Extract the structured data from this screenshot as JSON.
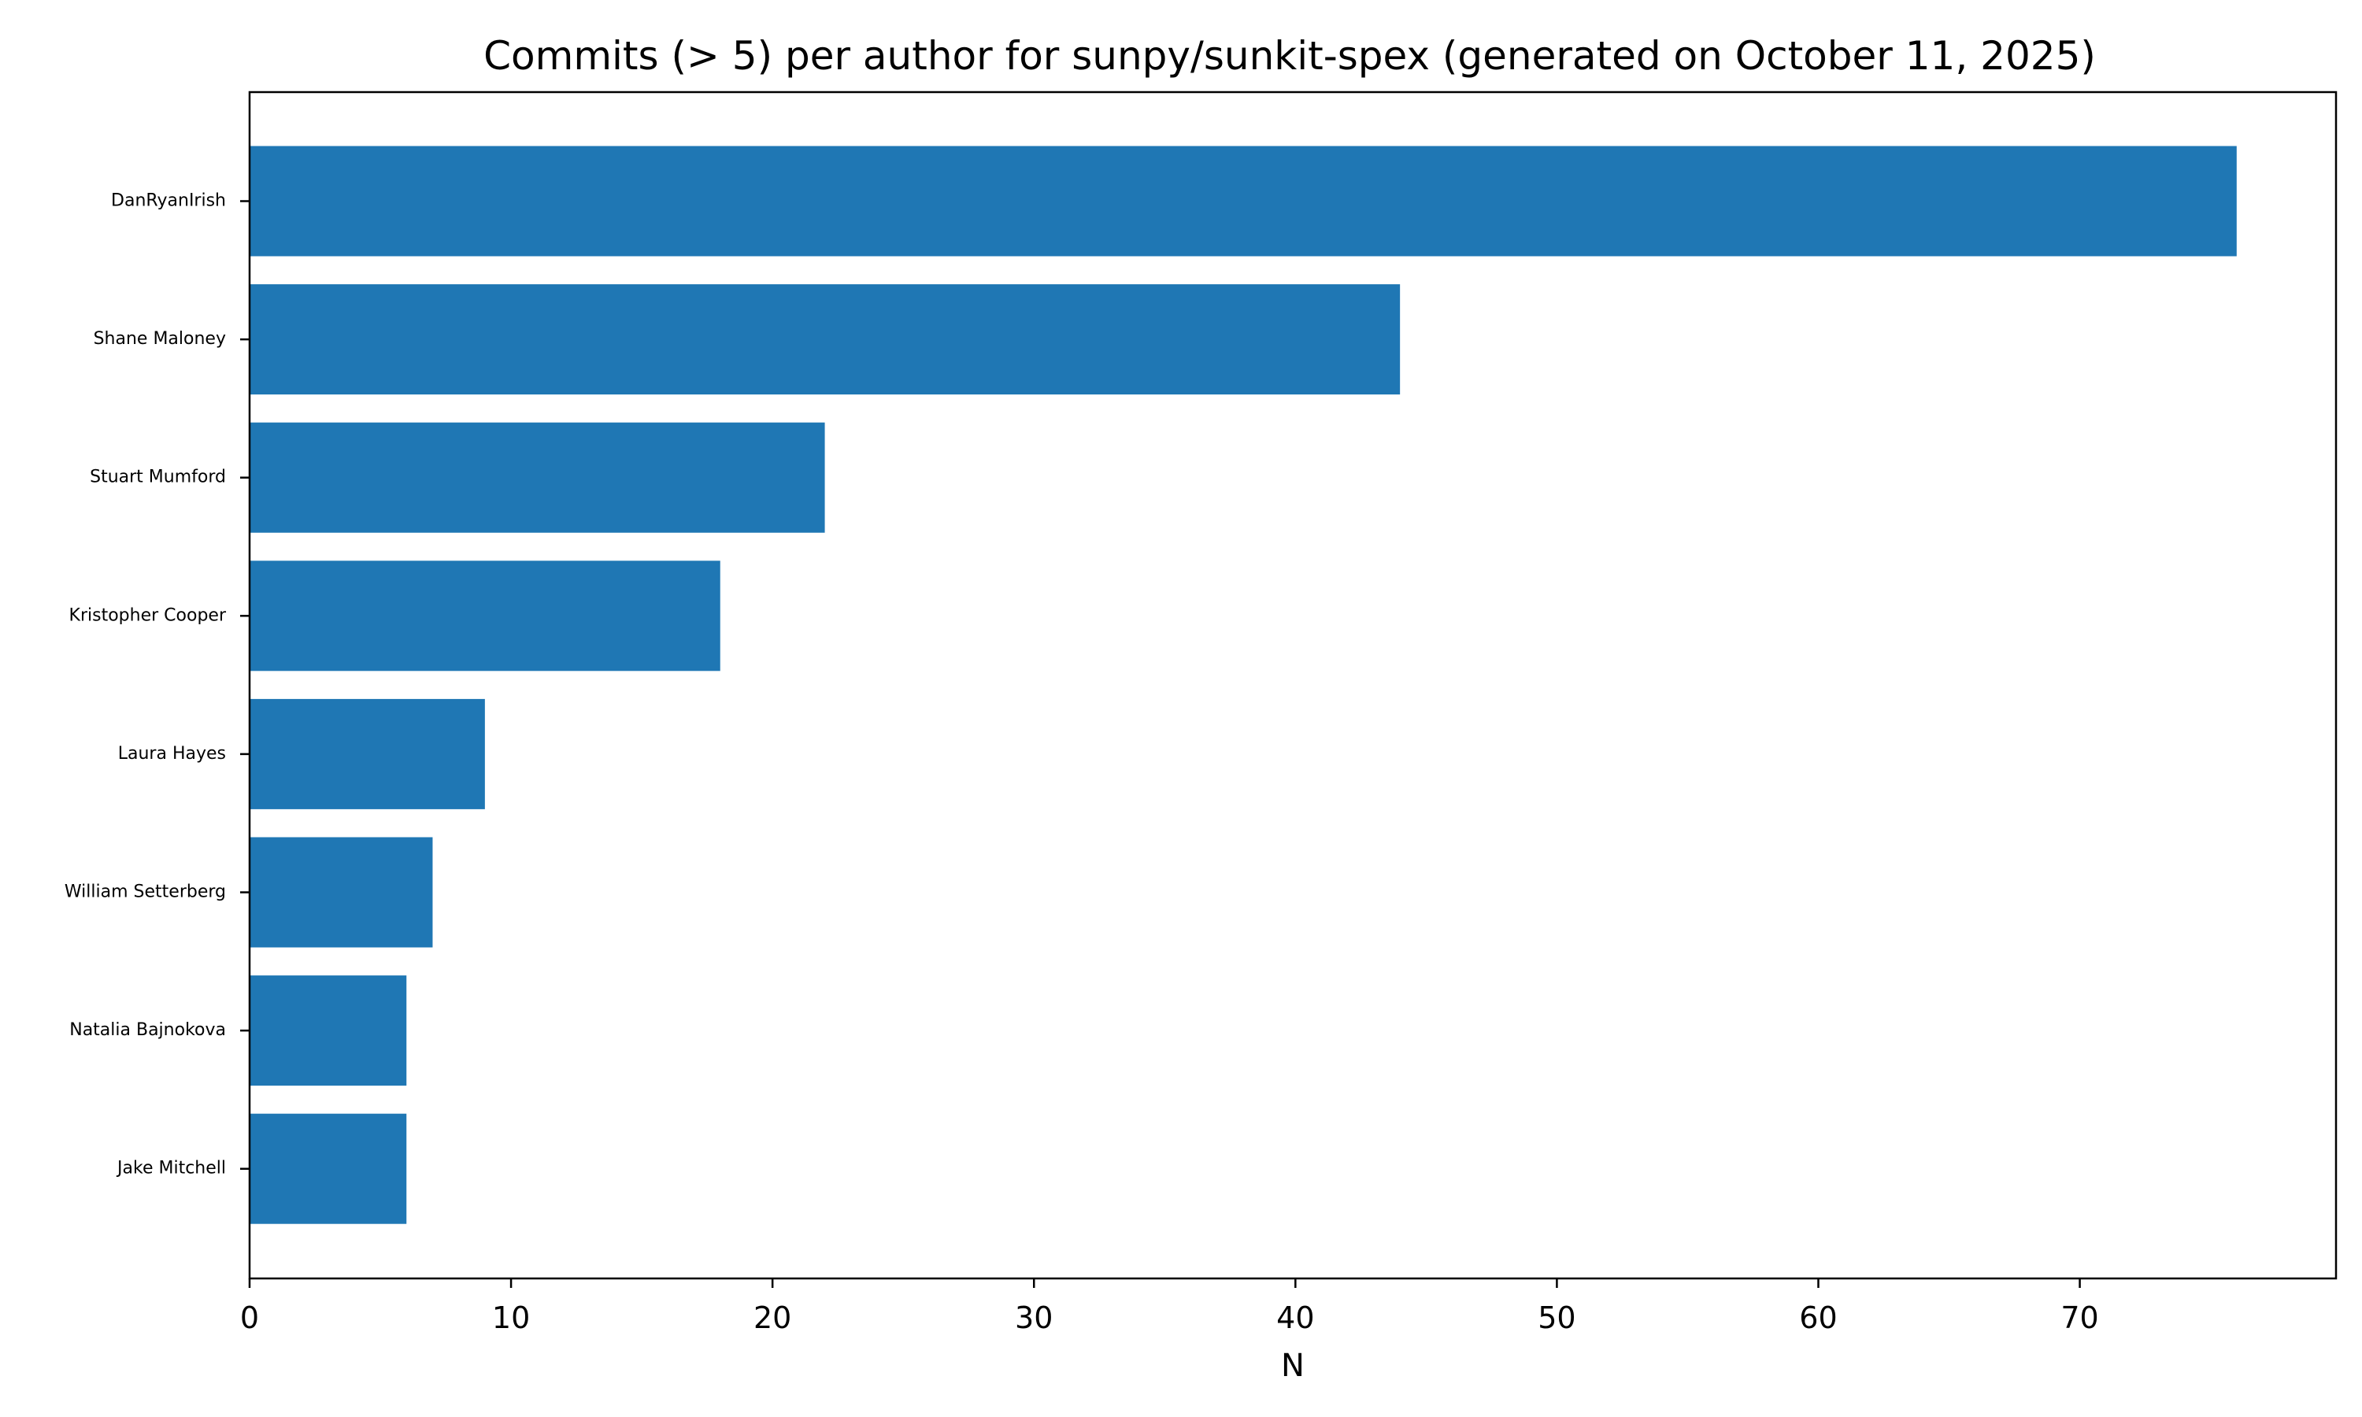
{
  "chart_data": {
    "type": "bar",
    "orientation": "horizontal",
    "title": "Commits (> 5) per author for sunpy/sunkit-spex (generated on October 11, 2025)",
    "xlabel": "N",
    "ylabel": "",
    "categories": [
      "DanRyanIrish",
      "Shane Maloney",
      "Stuart Mumford",
      "Kristopher Cooper",
      "Laura Hayes",
      "William Setterberg",
      "Natalia Bajnokova",
      "Jake Mitchell"
    ],
    "values": [
      76,
      44,
      22,
      18,
      9,
      7,
      6,
      6
    ],
    "xlim": [
      0,
      79.8
    ],
    "xticks": [
      0,
      10,
      20,
      30,
      40,
      50,
      60,
      70
    ],
    "grid": false,
    "bar_color": "#1f77b4"
  }
}
